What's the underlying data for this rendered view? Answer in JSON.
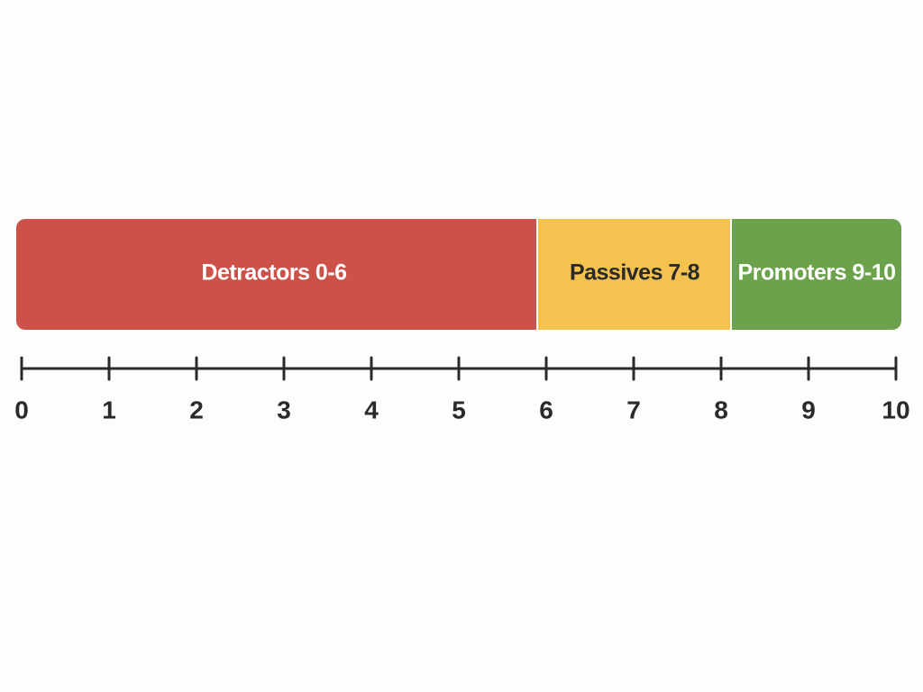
{
  "segments": [
    {
      "label": "Detractors 0-6"
    },
    {
      "label": "Passives 7-8"
    },
    {
      "label": "Promoters 9-10"
    }
  ],
  "scale": {
    "ticks": [
      0,
      1,
      2,
      3,
      4,
      5,
      6,
      7,
      8,
      9,
      10
    ]
  }
}
